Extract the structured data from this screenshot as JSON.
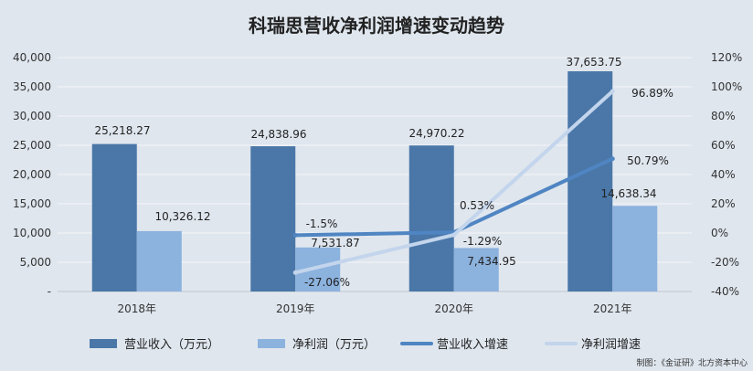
{
  "chart_data": {
    "type": "bar",
    "title": "科瑞思营收净利润增速变动趋势",
    "categories": [
      "2018年",
      "2019年",
      "2020年",
      "2021年"
    ],
    "series": [
      {
        "name": "营业收入（万元）",
        "kind": "bar",
        "axis": "left",
        "color": "#4a77a8",
        "values": [
          25218.27,
          24838.96,
          24970.22,
          37653.75
        ],
        "labels": [
          "25,218.27",
          "24,838.96",
          "24,970.22",
          "37,653.75"
        ]
      },
      {
        "name": "净利润（万元）",
        "kind": "bar",
        "axis": "left",
        "color": "#8cb2de",
        "values": [
          10326.12,
          7531.87,
          7434.95,
          14638.34
        ],
        "labels": [
          "10,326.12",
          "7,531.87",
          "7,434.95",
          "14,638.34"
        ]
      },
      {
        "name": "营业收入增速",
        "kind": "line",
        "axis": "right",
        "color": "#4f85c2",
        "values": [
          null,
          -1.5,
          0.53,
          50.79
        ],
        "labels": [
          null,
          "-1.5%",
          "0.53%",
          "50.79%"
        ]
      },
      {
        "name": "净利润增速",
        "kind": "line",
        "axis": "right",
        "color": "#c3d5ec",
        "values": [
          null,
          -27.06,
          -1.29,
          96.89
        ],
        "labels": [
          null,
          "-27.06%",
          "-1.29%",
          "96.89%"
        ]
      }
    ],
    "y_left": {
      "range": [
        0,
        40000
      ],
      "ticks": [
        "-",
        "5,000",
        "10,000",
        "15,000",
        "20,000",
        "25,000",
        "30,000",
        "35,000",
        "40,000"
      ]
    },
    "y_right": {
      "range": [
        -40,
        120
      ],
      "ticks": [
        "-40%",
        "-20%",
        "0%",
        "20%",
        "40%",
        "60%",
        "80%",
        "100%",
        "120%"
      ]
    },
    "grid": true,
    "legend_position": "bottom"
  },
  "source_note": "制图：《金证研》北方资本中心"
}
